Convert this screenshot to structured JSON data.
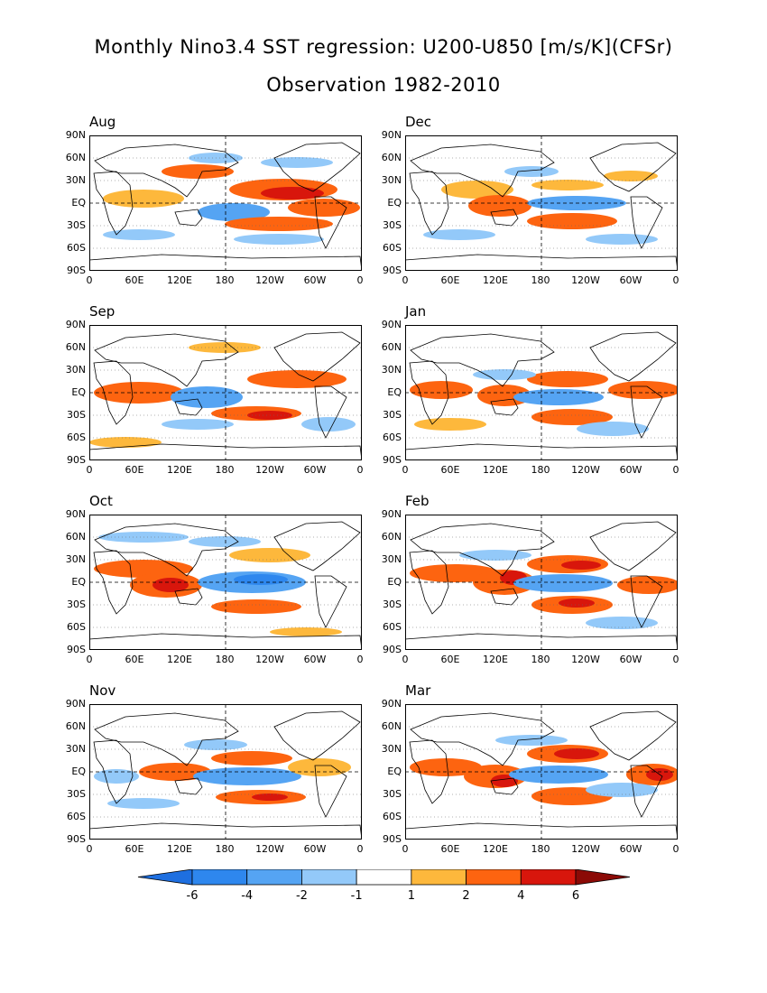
{
  "header": {
    "title": "Monthly Nino3.4 SST regression: U200-U850 [m/s/K](CFSr)",
    "subtitle": "Observation 1982-2010"
  },
  "axes": {
    "lat_labels": [
      "90N",
      "60N",
      "30N",
      "EQ",
      "30S",
      "60S",
      "90S"
    ],
    "lon_labels": [
      "0",
      "60E",
      "120E",
      "180",
      "120W",
      "60W",
      "0"
    ]
  },
  "panels": [
    {
      "id": "aug",
      "label": "Aug"
    },
    {
      "id": "dec",
      "label": "Dec"
    },
    {
      "id": "sep",
      "label": "Sep"
    },
    {
      "id": "jan",
      "label": "Jan"
    },
    {
      "id": "oct",
      "label": "Oct"
    },
    {
      "id": "feb",
      "label": "Feb"
    },
    {
      "id": "nov",
      "label": "Nov"
    },
    {
      "id": "mar",
      "label": "Mar"
    }
  ],
  "colorbar": {
    "levels": [
      "-6",
      "-4",
      "-2",
      "-1",
      "1",
      "2",
      "4",
      "6"
    ],
    "colors": [
      "#1e6fe0",
      "#2e87ee",
      "#55a4f3",
      "#93c9f9",
      "#ffffff",
      "#fdb83c",
      "#fd6410",
      "#d8160c",
      "#8b0a06"
    ]
  },
  "colors": {
    "neg_strong": "#2e87ee",
    "neg_mid": "#55a4f3",
    "neg_weak": "#93c9f9",
    "pos_weak": "#fdb83c",
    "pos_mid": "#fd6410",
    "pos_strong": "#d8160c"
  }
}
